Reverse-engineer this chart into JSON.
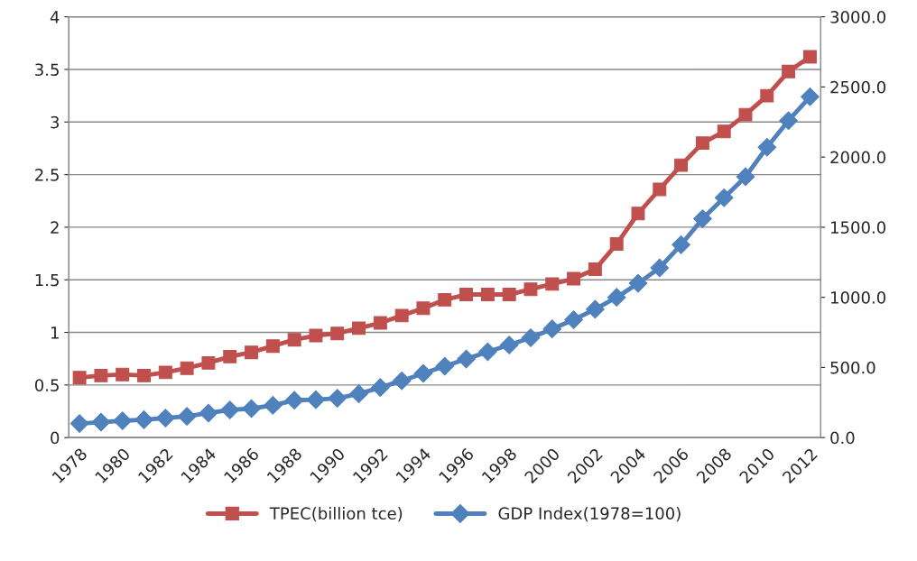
{
  "chart_data": {
    "type": "line",
    "categories": [
      "1978",
      null,
      "1980",
      null,
      "1982",
      null,
      "1984",
      null,
      "1986",
      null,
      "1988",
      null,
      "1990",
      null,
      "1992",
      null,
      "1994",
      null,
      "1996",
      null,
      "1998",
      null,
      "2000",
      null,
      "2002",
      null,
      "2004",
      null,
      "2006",
      null,
      "2008",
      null,
      "2010",
      null,
      "2012"
    ],
    "series": [
      {
        "name": "TPEC(billion tce)",
        "color": "#c0504d",
        "marker": "square",
        "values": [
          0.57,
          0.59,
          0.6,
          0.59,
          0.62,
          0.66,
          0.71,
          0.77,
          0.81,
          0.87,
          0.93,
          0.97,
          0.99,
          1.04,
          1.09,
          1.16,
          1.23,
          1.31,
          1.36,
          1.36,
          1.36,
          1.41,
          1.46,
          1.51,
          1.6,
          1.84,
          2.13,
          2.36,
          2.59,
          2.8,
          2.91,
          3.07,
          3.25,
          3.48,
          3.62
        ]
      },
      {
        "name": "GDP Index(1978=100)",
        "color": "#4f81bd",
        "marker": "diamond",
        "axis": "y2",
        "values": [
          100,
          110,
          120,
          127,
          139,
          151,
          175,
          197,
          207,
          230,
          266,
          270,
          280,
          312,
          357,
          405,
          458,
          509,
          560,
          612,
          660,
          712,
          775,
          840,
          915,
          1000,
          1100,
          1210,
          1375,
          1560,
          1710,
          1860,
          2070,
          2260,
          2430
        ]
      }
    ],
    "ylim": [
      0,
      4
    ],
    "yticks": [
      0,
      0.5,
      1,
      1.5,
      2,
      2.5,
      3,
      3.5,
      4
    ],
    "y2lim": [
      0,
      3000
    ],
    "y2ticks": [
      {
        "value": 0,
        "label": "0.0"
      },
      {
        "value": 500,
        "label": "500.0"
      },
      {
        "value": 1000,
        "label": "1000.0"
      },
      {
        "value": 1500,
        "label": "1500.0"
      },
      {
        "value": 2000,
        "label": "2000.0"
      },
      {
        "value": 2500,
        "label": "2500.0"
      },
      {
        "value": 3000,
        "label": "3000.0"
      }
    ],
    "grid": "y",
    "legend": "bottom",
    "line_style": "solid"
  }
}
